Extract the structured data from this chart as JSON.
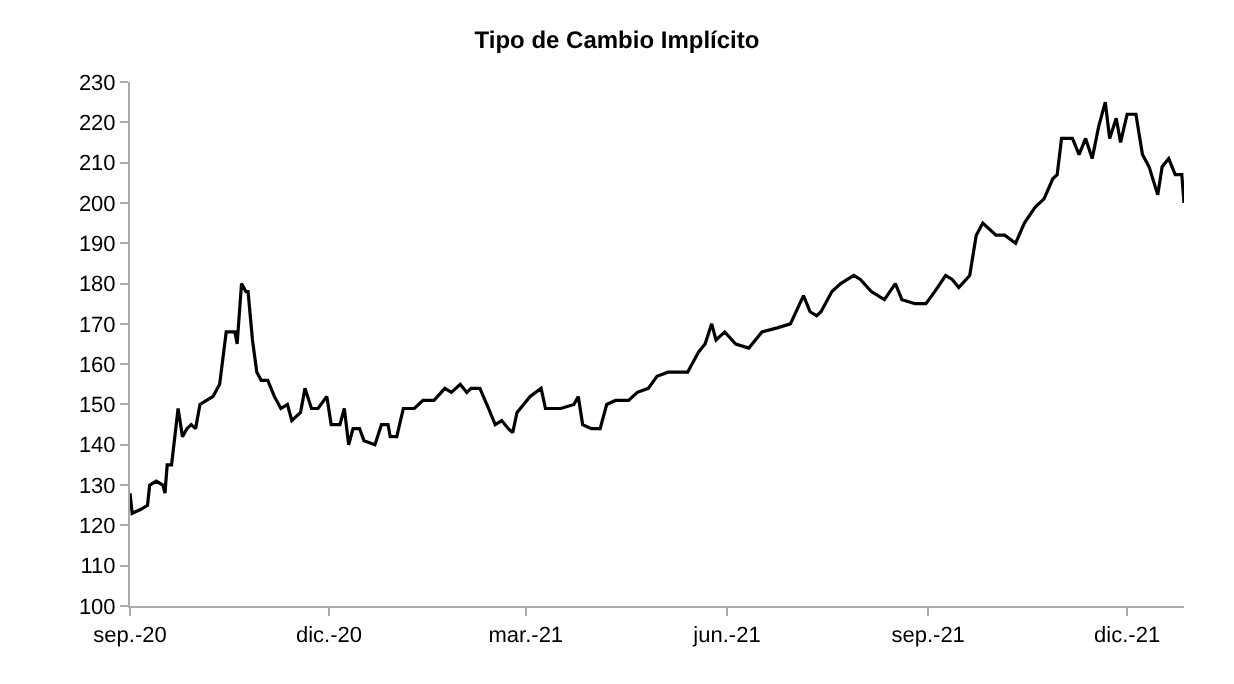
{
  "chart_data": {
    "type": "line",
    "title": "Tipo de Cambio Implícito",
    "x": [
      "2020-09-01",
      "2020-09-02",
      "2020-09-06",
      "2020-09-09",
      "2020-09-10",
      "2020-09-13",
      "2020-09-16",
      "2020-09-17",
      "2020-09-18",
      "2020-09-20",
      "2020-09-23",
      "2020-09-25",
      "2020-09-27",
      "2020-09-29",
      "2020-10-01",
      "2020-10-03",
      "2020-10-06",
      "2020-10-09",
      "2020-10-11",
      "2020-10-12",
      "2020-10-15",
      "2020-10-19",
      "2020-10-20",
      "2020-10-22",
      "2020-10-24",
      "2020-10-25",
      "2020-10-27",
      "2020-10-29",
      "2020-10-31",
      "2020-11-03",
      "2020-11-06",
      "2020-11-09",
      "2020-11-12",
      "2020-11-14",
      "2020-11-18",
      "2020-11-20",
      "2020-11-23",
      "2020-11-26",
      "2020-11-30",
      "2020-12-02",
      "2020-12-06",
      "2020-12-08",
      "2020-12-10",
      "2020-12-12",
      "2020-12-15",
      "2020-12-17",
      "2020-12-22",
      "2020-12-25",
      "2020-12-28",
      "2020-12-29",
      "2021-01-01",
      "2021-01-04",
      "2021-01-09",
      "2021-01-13",
      "2021-01-18",
      "2021-01-23",
      "2021-01-26",
      "2021-01-30",
      "2021-02-02",
      "2021-02-04",
      "2021-02-08",
      "2021-02-12",
      "2021-02-15",
      "2021-02-18",
      "2021-02-21",
      "2021-02-23",
      "2021-02-25",
      "2021-03-03",
      "2021-03-08",
      "2021-03-10",
      "2021-03-17",
      "2021-03-23",
      "2021-03-25",
      "2021-03-27",
      "2021-03-31",
      "2021-04-04",
      "2021-04-07",
      "2021-04-11",
      "2021-04-17",
      "2021-04-21",
      "2021-04-26",
      "2021-04-30",
      "2021-05-05",
      "2021-05-08",
      "2021-05-14",
      "2021-05-19",
      "2021-05-22",
      "2021-05-25",
      "2021-05-27",
      "2021-05-31",
      "2021-06-05",
      "2021-06-11",
      "2021-06-17",
      "2021-06-24",
      "2021-06-30",
      "2021-07-06",
      "2021-07-09",
      "2021-07-12",
      "2021-07-14",
      "2021-07-19",
      "2021-07-23",
      "2021-07-29",
      "2021-08-01",
      "2021-08-06",
      "2021-08-12",
      "2021-08-17",
      "2021-08-20",
      "2021-08-26",
      "2021-08-31",
      "2021-09-04",
      "2021-09-09",
      "2021-09-12",
      "2021-09-15",
      "2021-09-20",
      "2021-09-23",
      "2021-09-26",
      "2021-10-02",
      "2021-10-06",
      "2021-10-11",
      "2021-10-15",
      "2021-10-20",
      "2021-10-24",
      "2021-10-28",
      "2021-10-30",
      "2021-11-01",
      "2021-11-06",
      "2021-11-09",
      "2021-11-12",
      "2021-11-15",
      "2021-11-18",
      "2021-11-21",
      "2021-11-23",
      "2021-11-26",
      "2021-11-28",
      "2021-12-01",
      "2021-12-05",
      "2021-12-08",
      "2021-12-11",
      "2021-12-15",
      "2021-12-17",
      "2021-12-20",
      "2021-12-23",
      "2021-12-26",
      "2021-12-27"
    ],
    "series": [
      {
        "color": "#000000",
        "values": [
          128,
          123,
          124,
          125,
          130,
          131,
          130,
          128,
          135,
          135,
          149,
          142,
          144,
          145,
          144,
          150,
          151,
          152,
          154,
          155,
          168,
          168,
          165,
          180,
          178,
          178,
          166,
          158,
          156,
          156,
          152,
          149,
          150,
          146,
          148,
          154,
          149,
          149,
          152,
          145,
          145,
          149,
          140,
          144,
          144,
          141,
          140,
          145,
          145,
          142,
          142,
          149,
          149,
          151,
          151,
          154,
          153,
          155,
          153,
          154,
          154,
          149,
          145,
          146,
          144,
          143,
          148,
          152,
          154,
          149,
          149,
          150,
          152,
          145,
          144,
          144,
          150,
          151,
          151,
          153,
          154,
          157,
          158,
          158,
          158,
          163,
          165,
          170,
          166,
          168,
          165,
          164,
          168,
          169,
          170,
          177,
          173,
          172,
          173,
          178,
          180,
          182,
          181,
          178,
          176,
          180,
          176,
          175,
          175,
          178,
          182,
          181,
          179,
          182,
          192,
          195,
          192,
          192,
          190,
          195,
          199,
          201,
          206,
          207,
          216,
          216,
          212,
          216,
          211,
          219,
          225,
          216,
          221,
          215,
          222,
          222,
          212,
          209,
          202,
          209,
          211,
          207,
          207,
          200
        ]
      }
    ],
    "xlim": [
      "2020-09-01",
      "2021-12-27"
    ],
    "xticks": [
      {
        "value": "2020-09-01",
        "label": "sep.-20"
      },
      {
        "value": "2020-12-01",
        "label": "dic.-20"
      },
      {
        "value": "2021-03-01",
        "label": "mar.-21"
      },
      {
        "value": "2021-06-01",
        "label": "jun.-21"
      },
      {
        "value": "2021-09-01",
        "label": "sep.-21"
      },
      {
        "value": "2021-12-01",
        "label": "dic.-21"
      }
    ],
    "ylim": [
      100,
      230
    ],
    "yticks": [
      100,
      110,
      120,
      130,
      140,
      150,
      160,
      170,
      180,
      190,
      200,
      210,
      220,
      230
    ],
    "line_style": "solid"
  }
}
